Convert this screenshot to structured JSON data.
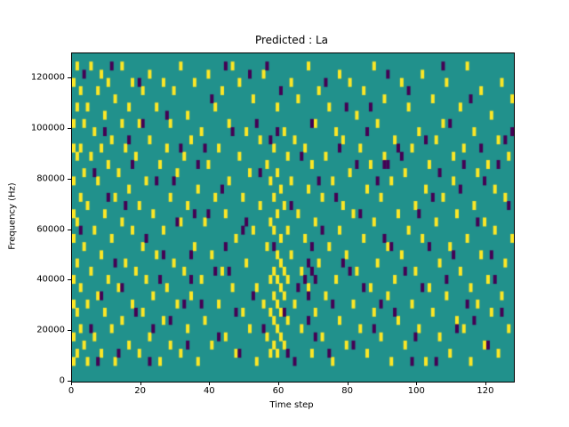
{
  "title": "Predicted : La",
  "axes": {
    "xlabel": "Time step",
    "ylabel": "Frequency (Hz)"
  },
  "chart_data": {
    "type": "heatmap",
    "title": "Predicted : La",
    "xlabel": "Time step",
    "ylabel": "Frequency (Hz)",
    "x_range": [
      0,
      128
    ],
    "y_range": [
      0,
      130000
    ],
    "grid_cols": 128,
    "grid_rows": 40,
    "x_ticks": [
      0,
      20,
      40,
      60,
      80,
      100,
      120
    ],
    "y_ticks": [
      0,
      20000,
      40000,
      60000,
      80000,
      100000,
      120000
    ],
    "legend": "none",
    "colors": {
      "background": "#21918c",
      "high": "#fde725",
      "low": "#440154"
    },
    "yellow_cells": [
      [
        0,
        2
      ],
      [
        0,
        5
      ],
      [
        0,
        9
      ],
      [
        0,
        12
      ],
      [
        0,
        17
      ],
      [
        0,
        20
      ],
      [
        0,
        24
      ],
      [
        0,
        28
      ],
      [
        0,
        31
      ],
      [
        0,
        36
      ],
      [
        1,
        3
      ],
      [
        1,
        8
      ],
      [
        1,
        14
      ],
      [
        1,
        19
      ],
      [
        1,
        27
      ],
      [
        1,
        33
      ],
      [
        1,
        38
      ],
      [
        2,
        6
      ],
      [
        2,
        11
      ],
      [
        2,
        22
      ],
      [
        2,
        28
      ],
      [
        2,
        35
      ],
      [
        3,
        4
      ],
      [
        3,
        16
      ],
      [
        3,
        25
      ],
      [
        3,
        31
      ],
      [
        4,
        2
      ],
      [
        4,
        9
      ],
      [
        4,
        21
      ],
      [
        4,
        33
      ],
      [
        5,
        13
      ],
      [
        5,
        27
      ],
      [
        5,
        38
      ],
      [
        6,
        5
      ],
      [
        6,
        18
      ],
      [
        6,
        30
      ],
      [
        7,
        10
      ],
      [
        7,
        24
      ],
      [
        7,
        35
      ],
      [
        8,
        3
      ],
      [
        8,
        15
      ],
      [
        8,
        28
      ],
      [
        8,
        37
      ],
      [
        9,
        8
      ],
      [
        9,
        20
      ],
      [
        9,
        32
      ],
      [
        10,
        12
      ],
      [
        10,
        26
      ],
      [
        10,
        36
      ],
      [
        11,
        6
      ],
      [
        11,
        17
      ],
      [
        11,
        29
      ],
      [
        12,
        2
      ],
      [
        12,
        22
      ],
      [
        12,
        34
      ],
      [
        13,
        11
      ],
      [
        13,
        25
      ],
      [
        14,
        7
      ],
      [
        14,
        19
      ],
      [
        14,
        31
      ],
      [
        14,
        38
      ],
      [
        15,
        14
      ],
      [
        15,
        28
      ],
      [
        16,
        4
      ],
      [
        16,
        23
      ],
      [
        16,
        33
      ],
      [
        17,
        9
      ],
      [
        17,
        18
      ],
      [
        17,
        36
      ],
      [
        18,
        13
      ],
      [
        18,
        27
      ],
      [
        19,
        3
      ],
      [
        19,
        21
      ],
      [
        19,
        31
      ],
      [
        20,
        8
      ],
      [
        20,
        16
      ],
      [
        20,
        35
      ],
      [
        21,
        12
      ],
      [
        21,
        24
      ],
      [
        22,
        5
      ],
      [
        22,
        29
      ],
      [
        22,
        37
      ],
      [
        23,
        10
      ],
      [
        23,
        20
      ],
      [
        24,
        15
      ],
      [
        24,
        33
      ],
      [
        25,
        2
      ],
      [
        25,
        26
      ],
      [
        26,
        7
      ],
      [
        26,
        18
      ],
      [
        26,
        36
      ],
      [
        27,
        11
      ],
      [
        27,
        28
      ],
      [
        28,
        4
      ],
      [
        28,
        22
      ],
      [
        28,
        31
      ],
      [
        29,
        14
      ],
      [
        29,
        35
      ],
      [
        30,
        9
      ],
      [
        30,
        25
      ],
      [
        31,
        3
      ],
      [
        31,
        19
      ],
      [
        31,
        38
      ],
      [
        32,
        13
      ],
      [
        32,
        27
      ],
      [
        33,
        6
      ],
      [
        33,
        21
      ],
      [
        33,
        32
      ],
      [
        34,
        10
      ],
      [
        34,
        29
      ],
      [
        35,
        16
      ],
      [
        35,
        36
      ],
      [
        36,
        2
      ],
      [
        36,
        23
      ],
      [
        37,
        12
      ],
      [
        37,
        30
      ],
      [
        38,
        7
      ],
      [
        38,
        19
      ],
      [
        39,
        26
      ],
      [
        39,
        37
      ],
      [
        40,
        4
      ],
      [
        40,
        15
      ],
      [
        41,
        22
      ],
      [
        41,
        33
      ],
      [
        42,
        9
      ],
      [
        42,
        28
      ],
      [
        43,
        13
      ],
      [
        43,
        35
      ],
      [
        44,
        5
      ],
      [
        44,
        20
      ],
      [
        45,
        24
      ],
      [
        45,
        31
      ],
      [
        46,
        11
      ],
      [
        46,
        38
      ],
      [
        47,
        3
      ],
      [
        47,
        17
      ],
      [
        48,
        27
      ],
      [
        48,
        36
      ],
      [
        49,
        8
      ],
      [
        49,
        22
      ],
      [
        50,
        14
      ],
      [
        50,
        30
      ],
      [
        51,
        6
      ],
      [
        51,
        25
      ],
      [
        52,
        18
      ],
      [
        52,
        34
      ],
      [
        53,
        2
      ],
      [
        53,
        11
      ],
      [
        54,
        21
      ],
      [
        54,
        29
      ],
      [
        55,
        9
      ],
      [
        55,
        37
      ],
      [
        56,
        5
      ],
      [
        56,
        16
      ],
      [
        56,
        26
      ],
      [
        57,
        3
      ],
      [
        57,
        8
      ],
      [
        57,
        12
      ],
      [
        57,
        19
      ],
      [
        57,
        24
      ],
      [
        58,
        4
      ],
      [
        58,
        7
      ],
      [
        58,
        10
      ],
      [
        58,
        13
      ],
      [
        58,
        18
      ],
      [
        58,
        22
      ],
      [
        58,
        28
      ],
      [
        59,
        3
      ],
      [
        59,
        6
      ],
      [
        59,
        9
      ],
      [
        59,
        12
      ],
      [
        59,
        15
      ],
      [
        59,
        20
      ],
      [
        59,
        25
      ],
      [
        59,
        33
      ],
      [
        60,
        5
      ],
      [
        60,
        8
      ],
      [
        60,
        11
      ],
      [
        60,
        14
      ],
      [
        60,
        17
      ],
      [
        60,
        23
      ],
      [
        61,
        4
      ],
      [
        61,
        10
      ],
      [
        61,
        13
      ],
      [
        61,
        21
      ],
      [
        61,
        30
      ],
      [
        62,
        7
      ],
      [
        62,
        12
      ],
      [
        62,
        18
      ],
      [
        62,
        27
      ],
      [
        63,
        15
      ],
      [
        63,
        24
      ],
      [
        63,
        36
      ],
      [
        64,
        9
      ],
      [
        64,
        29
      ],
      [
        65,
        20
      ],
      [
        65,
        34
      ],
      [
        66,
        6
      ],
      [
        66,
        13
      ],
      [
        67,
        17
      ],
      [
        67,
        28
      ],
      [
        68,
        11
      ],
      [
        68,
        23
      ],
      [
        68,
        38
      ],
      [
        69,
        3
      ],
      [
        69,
        26
      ],
      [
        70,
        8
      ],
      [
        70,
        19
      ],
      [
        70,
        31
      ],
      [
        71,
        14
      ],
      [
        71,
        35
      ],
      [
        72,
        5
      ],
      [
        72,
        22
      ],
      [
        73,
        10
      ],
      [
        73,
        27
      ],
      [
        74,
        16
      ],
      [
        74,
        33
      ],
      [
        75,
        2
      ],
      [
        75,
        24
      ],
      [
        76,
        12
      ],
      [
        76,
        30
      ],
      [
        77,
        7
      ],
      [
        77,
        18
      ],
      [
        77,
        37
      ],
      [
        78,
        21
      ],
      [
        78,
        29
      ],
      [
        79,
        4
      ],
      [
        79,
        15
      ],
      [
        80,
        25
      ],
      [
        80,
        36
      ],
      [
        81,
        9
      ],
      [
        81,
        20
      ],
      [
        82,
        13
      ],
      [
        82,
        32
      ],
      [
        83,
        6
      ],
      [
        83,
        28
      ],
      [
        84,
        17
      ],
      [
        84,
        35
      ],
      [
        85,
        3
      ],
      [
        85,
        23
      ],
      [
        86,
        11
      ],
      [
        86,
        26
      ],
      [
        87,
        8
      ],
      [
        87,
        19
      ],
      [
        87,
        38
      ],
      [
        88,
        14
      ],
      [
        88,
        31
      ],
      [
        89,
        5
      ],
      [
        89,
        22
      ],
      [
        90,
        27
      ],
      [
        90,
        34
      ],
      [
        91,
        10
      ],
      [
        91,
        16
      ],
      [
        92,
        2
      ],
      [
        92,
        24
      ],
      [
        93,
        12
      ],
      [
        93,
        29
      ],
      [
        94,
        7
      ],
      [
        94,
        20
      ],
      [
        95,
        15
      ],
      [
        95,
        36
      ],
      [
        96,
        4
      ],
      [
        96,
        25
      ],
      [
        97,
        18
      ],
      [
        97,
        33
      ],
      [
        98,
        9
      ],
      [
        98,
        28
      ],
      [
        99,
        13
      ],
      [
        99,
        21
      ],
      [
        100,
        6
      ],
      [
        100,
        30
      ],
      [
        101,
        17
      ],
      [
        101,
        37
      ],
      [
        102,
        2
      ],
      [
        102,
        23
      ],
      [
        103,
        11
      ],
      [
        103,
        26
      ],
      [
        104,
        8
      ],
      [
        104,
        34
      ],
      [
        105,
        19
      ],
      [
        105,
        29
      ],
      [
        106,
        5
      ],
      [
        106,
        14
      ],
      [
        107,
        22
      ],
      [
        107,
        31
      ],
      [
        108,
        10
      ],
      [
        108,
        36
      ],
      [
        109,
        3
      ],
      [
        109,
        16
      ],
      [
        110,
        24
      ],
      [
        110,
        27
      ],
      [
        111,
        7
      ],
      [
        111,
        20
      ],
      [
        112,
        13
      ],
      [
        112,
        33
      ],
      [
        113,
        6
      ],
      [
        113,
        28
      ],
      [
        114,
        17
      ],
      [
        114,
        38
      ],
      [
        115,
        2
      ],
      [
        115,
        11
      ],
      [
        116,
        21
      ],
      [
        116,
        30
      ],
      [
        117,
        9
      ],
      [
        117,
        25
      ],
      [
        118,
        15
      ],
      [
        118,
        35
      ],
      [
        119,
        4
      ],
      [
        119,
        19
      ],
      [
        120,
        12
      ],
      [
        120,
        26
      ],
      [
        121,
        8
      ],
      [
        121,
        32
      ],
      [
        122,
        18
      ],
      [
        122,
        23
      ],
      [
        123,
        3
      ],
      [
        123,
        29
      ],
      [
        124,
        10
      ],
      [
        124,
        36
      ],
      [
        125,
        14
      ],
      [
        125,
        22
      ],
      [
        126,
        6
      ],
      [
        126,
        27
      ],
      [
        127,
        17
      ],
      [
        127,
        34
      ]
    ],
    "dark_cells": [
      [
        2,
        18
      ],
      [
        3,
        37
      ],
      [
        5,
        6
      ],
      [
        6,
        25
      ],
      [
        7,
        2
      ],
      [
        8,
        10
      ],
      [
        9,
        30
      ],
      [
        10,
        22
      ],
      [
        11,
        38
      ],
      [
        12,
        14
      ],
      [
        13,
        3
      ],
      [
        14,
        11
      ],
      [
        15,
        21
      ],
      [
        16,
        29
      ],
      [
        17,
        26
      ],
      [
        18,
        8
      ],
      [
        19,
        36
      ],
      [
        20,
        31
      ],
      [
        21,
        17
      ],
      [
        22,
        2
      ],
      [
        23,
        6
      ],
      [
        24,
        24
      ],
      [
        25,
        12
      ],
      [
        26,
        15
      ],
      [
        27,
        32
      ],
      [
        28,
        7
      ],
      [
        29,
        24
      ],
      [
        30,
        19
      ],
      [
        31,
        28
      ],
      [
        32,
        9
      ],
      [
        33,
        4
      ],
      [
        34,
        15
      ],
      [
        35,
        20
      ],
      [
        36,
        26
      ],
      [
        37,
        9
      ],
      [
        38,
        28
      ],
      [
        39,
        20
      ],
      [
        40,
        34
      ],
      [
        41,
        13
      ],
      [
        42,
        5
      ],
      [
        43,
        23
      ],
      [
        44,
        38
      ],
      [
        45,
        13
      ],
      [
        46,
        30
      ],
      [
        47,
        8
      ],
      [
        48,
        3
      ],
      [
        49,
        18
      ],
      [
        50,
        19
      ],
      [
        51,
        37
      ],
      [
        52,
        10
      ],
      [
        53,
        31
      ],
      [
        54,
        25
      ],
      [
        55,
        6
      ],
      [
        56,
        38
      ],
      [
        57,
        29
      ],
      [
        58,
        16
      ],
      [
        59,
        30
      ],
      [
        60,
        35
      ],
      [
        61,
        8
      ],
      [
        62,
        3
      ],
      [
        63,
        21
      ],
      [
        64,
        2
      ],
      [
        65,
        11
      ],
      [
        66,
        27
      ],
      [
        67,
        12
      ],
      [
        68,
        7
      ],
      [
        69,
        31
      ],
      [
        70,
        5
      ],
      [
        71,
        24
      ],
      [
        72,
        18
      ],
      [
        73,
        36
      ],
      [
        74,
        3
      ],
      [
        75,
        9
      ],
      [
        76,
        22
      ],
      [
        77,
        28
      ],
      [
        78,
        14
      ],
      [
        79,
        33
      ],
      [
        80,
        13
      ],
      [
        81,
        4
      ],
      [
        82,
        26
      ],
      [
        83,
        20
      ],
      [
        84,
        11
      ],
      [
        85,
        30
      ],
      [
        86,
        33
      ],
      [
        87,
        6
      ],
      [
        88,
        24
      ],
      [
        89,
        9
      ],
      [
        90,
        17
      ],
      [
        91,
        37
      ],
      [
        92,
        16
      ],
      [
        93,
        8
      ],
      [
        94,
        28
      ],
      [
        95,
        27
      ],
      [
        96,
        13
      ],
      [
        97,
        35
      ],
      [
        98,
        2
      ],
      [
        99,
        5
      ],
      [
        100,
        20
      ],
      [
        101,
        11
      ],
      [
        102,
        29
      ],
      [
        103,
        16
      ],
      [
        104,
        22
      ],
      [
        105,
        2
      ],
      [
        106,
        25
      ],
      [
        107,
        38
      ],
      [
        108,
        12
      ],
      [
        109,
        31
      ],
      [
        110,
        15
      ],
      [
        111,
        6
      ],
      [
        112,
        23
      ],
      [
        113,
        26
      ],
      [
        114,
        9
      ],
      [
        115,
        34
      ],
      [
        116,
        7
      ],
      [
        117,
        19
      ],
      [
        118,
        28
      ],
      [
        119,
        24
      ],
      [
        120,
        4
      ],
      [
        121,
        15
      ],
      [
        122,
        12
      ],
      [
        123,
        26
      ],
      [
        124,
        8
      ],
      [
        125,
        29
      ],
      [
        126,
        21
      ],
      [
        127,
        30
      ],
      [
        68,
        10
      ],
      [
        68,
        14
      ],
      [
        69,
        13
      ],
      [
        69,
        16
      ],
      [
        70,
        12
      ],
      [
        90,
        26
      ],
      [
        91,
        26
      ],
      [
        44,
        16
      ],
      [
        34,
        12
      ]
    ]
  }
}
